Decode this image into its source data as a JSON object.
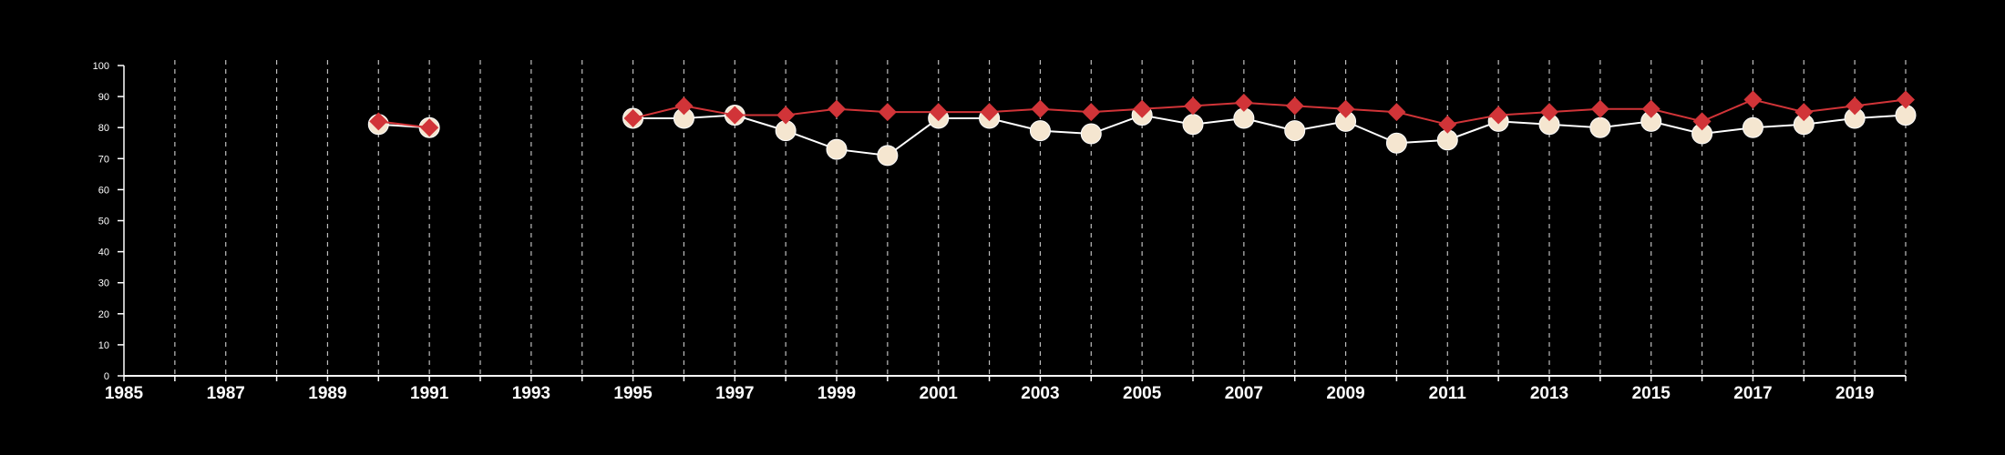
{
  "chart_data": {
    "type": "line",
    "title": "",
    "xlabel": "",
    "ylabel": "",
    "xlim": [
      1985,
      2020
    ],
    "ylim": [
      0,
      100
    ],
    "x_ticks": [
      1985,
      1987,
      1989,
      1991,
      1993,
      1995,
      1997,
      1999,
      2001,
      2003,
      2005,
      2007,
      2009,
      2011,
      2013,
      2015,
      2017,
      2019
    ],
    "y_ticks": [
      0,
      10,
      20,
      30,
      40,
      50,
      60,
      70,
      80,
      90,
      100
    ],
    "x_gridlines": "dashed vertical line at every year",
    "grid": true,
    "legend": "none",
    "series": [
      {
        "marker": "circle",
        "color": "#f5e6d0",
        "line_color": "#ffffff",
        "segments": [
          [
            [
              1990,
              81
            ],
            [
              1991,
              80
            ]
          ],
          [
            [
              1995,
              83
            ],
            [
              1996,
              83
            ],
            [
              1997,
              84
            ],
            [
              1998,
              79
            ],
            [
              1999,
              73
            ],
            [
              2000,
              71
            ],
            [
              2001,
              83
            ],
            [
              2002,
              83
            ],
            [
              2003,
              79
            ],
            [
              2004,
              78
            ],
            [
              2005,
              84
            ],
            [
              2006,
              81
            ],
            [
              2007,
              83
            ],
            [
              2008,
              79
            ],
            [
              2009,
              82
            ],
            [
              2010,
              75
            ],
            [
              2011,
              76
            ],
            [
              2012,
              82
            ],
            [
              2013,
              81
            ],
            [
              2014,
              80
            ],
            [
              2015,
              82
            ],
            [
              2016,
              78
            ],
            [
              2017,
              80
            ],
            [
              2018,
              81
            ],
            [
              2019,
              83
            ],
            [
              2020,
              84
            ]
          ]
        ]
      },
      {
        "marker": "diamond",
        "color": "#d13438",
        "line_color": "#d13438",
        "segments": [
          [
            [
              1990,
              82
            ],
            [
              1991,
              80
            ]
          ],
          [
            [
              1995,
              83
            ],
            [
              1996,
              87
            ],
            [
              1997,
              84
            ],
            [
              1998,
              84
            ],
            [
              1999,
              86
            ],
            [
              2000,
              85
            ],
            [
              2001,
              85
            ],
            [
              2002,
              85
            ],
            [
              2003,
              86
            ],
            [
              2004,
              85
            ],
            [
              2005,
              86
            ],
            [
              2006,
              87
            ],
            [
              2007,
              88
            ],
            [
              2008,
              87
            ],
            [
              2009,
              86
            ],
            [
              2010,
              85
            ],
            [
              2011,
              81
            ],
            [
              2012,
              84
            ],
            [
              2013,
              85
            ],
            [
              2014,
              86
            ],
            [
              2015,
              86
            ],
            [
              2016,
              82
            ],
            [
              2017,
              89
            ],
            [
              2018,
              85
            ],
            [
              2019,
              87
            ],
            [
              2020,
              89
            ]
          ]
        ]
      }
    ]
  }
}
